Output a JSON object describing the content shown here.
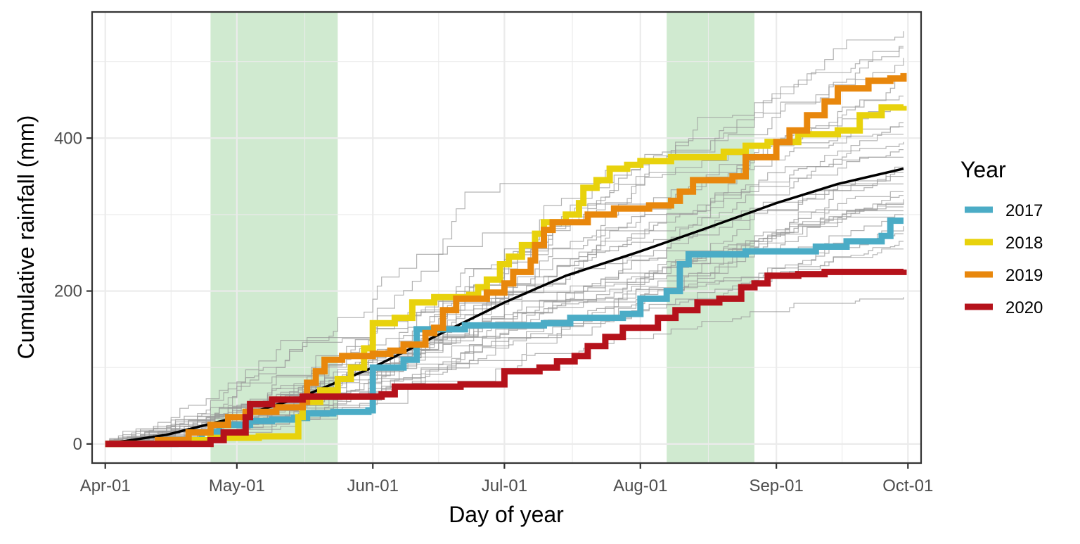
{
  "chart_data": {
    "type": "line",
    "xlabel": "Day of year",
    "ylabel": "Cumulative rainfall (mm)",
    "x_ticks": [
      "Apr-01",
      "May-01",
      "Jun-01",
      "Jul-01",
      "Aug-01",
      "Sep-01",
      "Oct-01"
    ],
    "x_range": [
      "2020-03-29",
      "2020-10-04"
    ],
    "y_ticks": [
      0,
      200,
      400
    ],
    "ylim": [
      -25,
      565
    ],
    "grid": true,
    "legend": {
      "title": "Year",
      "placement": "right"
    },
    "shaded_periods": [
      {
        "start": "2020-04-25",
        "end": "2020-05-24",
        "color": "#d0ead0"
      },
      {
        "start": "2020-08-07",
        "end": "2020-08-27",
        "color": "#d0ead0"
      }
    ],
    "background_series": {
      "color": "#999999",
      "description_count": 30,
      "final_values": [
        540,
        520,
        518,
        505,
        475,
        455,
        440,
        420,
        415,
        405,
        395,
        385,
        375,
        362,
        355,
        350,
        340,
        330,
        325,
        320,
        315,
        310,
        305,
        300,
        295,
        285,
        275,
        265,
        255,
        192
      ]
    },
    "mean_series": {
      "color": "#000000",
      "points": [
        [
          "2020-04-01",
          0
        ],
        [
          "2020-04-15",
          12
        ],
        [
          "2020-05-01",
          35
        ],
        [
          "2020-05-15",
          60
        ],
        [
          "2020-06-01",
          100
        ],
        [
          "2020-06-15",
          140
        ],
        [
          "2020-07-01",
          185
        ],
        [
          "2020-07-15",
          220
        ],
        [
          "2020-08-01",
          252
        ],
        [
          "2020-08-15",
          280
        ],
        [
          "2020-09-01",
          315
        ],
        [
          "2020-09-15",
          340
        ],
        [
          "2020-09-30",
          360
        ]
      ]
    },
    "series": [
      {
        "name": "2017",
        "color": "#4bacc6",
        "points": [
          [
            "2020-04-01",
            0
          ],
          [
            "2020-04-16",
            0
          ],
          [
            "2020-04-17",
            5
          ],
          [
            "2020-04-23",
            15
          ],
          [
            "2020-04-27",
            25
          ],
          [
            "2020-05-04",
            30
          ],
          [
            "2020-05-09",
            32
          ],
          [
            "2020-05-14",
            34
          ],
          [
            "2020-05-17",
            40
          ],
          [
            "2020-05-23",
            42
          ],
          [
            "2020-05-31",
            44
          ],
          [
            "2020-06-01",
            100
          ],
          [
            "2020-06-08",
            110
          ],
          [
            "2020-06-11",
            150
          ],
          [
            "2020-06-20",
            150
          ],
          [
            "2020-06-22",
            155
          ],
          [
            "2020-07-10",
            158
          ],
          [
            "2020-07-16",
            165
          ],
          [
            "2020-07-28",
            170
          ],
          [
            "2020-08-01",
            190
          ],
          [
            "2020-08-07",
            200
          ],
          [
            "2020-08-10",
            235
          ],
          [
            "2020-08-12",
            248
          ],
          [
            "2020-08-25",
            252
          ],
          [
            "2020-09-10",
            258
          ],
          [
            "2020-09-17",
            265
          ],
          [
            "2020-09-25",
            272
          ],
          [
            "2020-09-27",
            292
          ],
          [
            "2020-09-30",
            292
          ]
        ]
      },
      {
        "name": "2018",
        "color": "#e8d20c",
        "points": [
          [
            "2020-04-01",
            0
          ],
          [
            "2020-04-15",
            5
          ],
          [
            "2020-04-25",
            8
          ],
          [
            "2020-05-06",
            10
          ],
          [
            "2020-05-15",
            35
          ],
          [
            "2020-05-16",
            55
          ],
          [
            "2020-05-20",
            70
          ],
          [
            "2020-05-24",
            85
          ],
          [
            "2020-05-27",
            100
          ],
          [
            "2020-05-30",
            125
          ],
          [
            "2020-06-01",
            158
          ],
          [
            "2020-06-06",
            165
          ],
          [
            "2020-06-10",
            185
          ],
          [
            "2020-06-15",
            192
          ],
          [
            "2020-06-23",
            195
          ],
          [
            "2020-06-25",
            205
          ],
          [
            "2020-06-27",
            215
          ],
          [
            "2020-06-30",
            235
          ],
          [
            "2020-07-02",
            245
          ],
          [
            "2020-07-05",
            260
          ],
          [
            "2020-07-08",
            275
          ],
          [
            "2020-07-10",
            290
          ],
          [
            "2020-07-15",
            300
          ],
          [
            "2020-07-18",
            315
          ],
          [
            "2020-07-19",
            335
          ],
          [
            "2020-07-22",
            345
          ],
          [
            "2020-07-25",
            360
          ],
          [
            "2020-07-29",
            365
          ],
          [
            "2020-08-01",
            370
          ],
          [
            "2020-08-08",
            375
          ],
          [
            "2020-08-20",
            382
          ],
          [
            "2020-08-25",
            390
          ],
          [
            "2020-08-30",
            395
          ],
          [
            "2020-09-06",
            405
          ],
          [
            "2020-09-15",
            410
          ],
          [
            "2020-09-20",
            430
          ],
          [
            "2020-09-25",
            440
          ],
          [
            "2020-09-30",
            442
          ]
        ]
      },
      {
        "name": "2019",
        "color": "#e8870c",
        "points": [
          [
            "2020-04-01",
            0
          ],
          [
            "2020-04-13",
            5
          ],
          [
            "2020-04-20",
            15
          ],
          [
            "2020-04-25",
            25
          ],
          [
            "2020-04-29",
            35
          ],
          [
            "2020-05-03",
            42
          ],
          [
            "2020-05-10",
            48
          ],
          [
            "2020-05-16",
            55
          ],
          [
            "2020-05-17",
            80
          ],
          [
            "2020-05-19",
            95
          ],
          [
            "2020-05-21",
            110
          ],
          [
            "2020-05-25",
            115
          ],
          [
            "2020-06-01",
            118
          ],
          [
            "2020-06-05",
            122
          ],
          [
            "2020-06-08",
            130
          ],
          [
            "2020-06-13",
            145
          ],
          [
            "2020-06-15",
            152
          ],
          [
            "2020-06-17",
            175
          ],
          [
            "2020-06-20",
            190
          ],
          [
            "2020-06-27",
            198
          ],
          [
            "2020-07-01",
            210
          ],
          [
            "2020-07-03",
            225
          ],
          [
            "2020-07-07",
            240
          ],
          [
            "2020-07-08",
            260
          ],
          [
            "2020-07-10",
            280
          ],
          [
            "2020-07-12",
            290
          ],
          [
            "2020-07-20",
            300
          ],
          [
            "2020-07-26",
            308
          ],
          [
            "2020-08-03",
            312
          ],
          [
            "2020-08-08",
            318
          ],
          [
            "2020-08-10",
            330
          ],
          [
            "2020-08-13",
            345
          ],
          [
            "2020-08-22",
            350
          ],
          [
            "2020-08-25",
            375
          ],
          [
            "2020-09-01",
            395
          ],
          [
            "2020-09-04",
            410
          ],
          [
            "2020-09-08",
            430
          ],
          [
            "2020-09-12",
            448
          ],
          [
            "2020-09-15",
            465
          ],
          [
            "2020-09-22",
            475
          ],
          [
            "2020-09-27",
            478
          ],
          [
            "2020-09-30",
            485
          ]
        ]
      },
      {
        "name": "2020",
        "color": "#b5121b",
        "points": [
          [
            "2020-04-01",
            0
          ],
          [
            "2020-04-25",
            5
          ],
          [
            "2020-04-28",
            15
          ],
          [
            "2020-05-03",
            35
          ],
          [
            "2020-05-04",
            52
          ],
          [
            "2020-05-09",
            58
          ],
          [
            "2020-05-16",
            62
          ],
          [
            "2020-06-03",
            65
          ],
          [
            "2020-06-06",
            75
          ],
          [
            "2020-06-21",
            78
          ],
          [
            "2020-07-01",
            95
          ],
          [
            "2020-07-09",
            100
          ],
          [
            "2020-07-13",
            108
          ],
          [
            "2020-07-17",
            115
          ],
          [
            "2020-07-20",
            128
          ],
          [
            "2020-07-24",
            140
          ],
          [
            "2020-07-28",
            152
          ],
          [
            "2020-08-05",
            165
          ],
          [
            "2020-08-09",
            175
          ],
          [
            "2020-08-14",
            185
          ],
          [
            "2020-08-19",
            190
          ],
          [
            "2020-08-24",
            205
          ],
          [
            "2020-08-27",
            210
          ],
          [
            "2020-08-30",
            220
          ],
          [
            "2020-09-06",
            222
          ],
          [
            "2020-09-12",
            225
          ],
          [
            "2020-09-30",
            228
          ]
        ]
      }
    ]
  }
}
